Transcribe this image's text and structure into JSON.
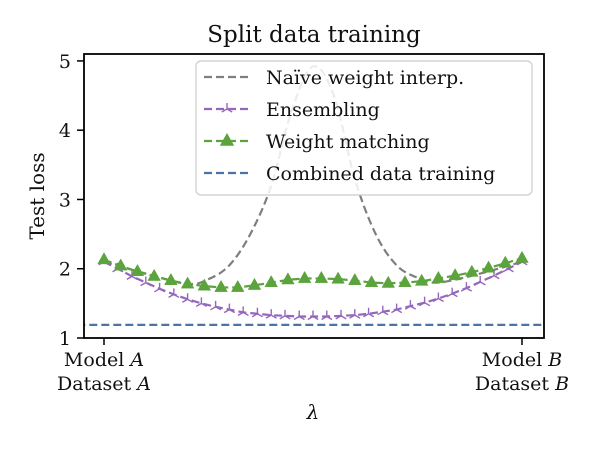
{
  "chart_data": {
    "type": "line",
    "title": "Split data training",
    "xlabel": "λ",
    "ylabel": "Test loss",
    "xlim": [
      0,
      1
    ],
    "ylim": [
      1,
      5.1
    ],
    "yticks": [
      1,
      2,
      3,
      4,
      5
    ],
    "xticks": [
      {
        "x": 0,
        "line1": "Model A",
        "line2": "Dataset A"
      },
      {
        "x": 1,
        "line1": "Model B",
        "line2": "Dataset B"
      }
    ],
    "legend_position": "top-right",
    "series": [
      {
        "name": "Naïve weight interp.",
        "color": "#7f7f7f",
        "style": "dashed",
        "marker": "none",
        "x": [
          0.0,
          0.1,
          0.2,
          0.25,
          0.3,
          0.35,
          0.4,
          0.45,
          0.5,
          0.55,
          0.6,
          0.65,
          0.7,
          0.75,
          0.8,
          0.9,
          1.0
        ],
        "y": [
          2.1,
          1.93,
          1.78,
          1.85,
          2.05,
          2.5,
          3.2,
          4.3,
          4.92,
          4.5,
          3.3,
          2.5,
          2.05,
          1.87,
          1.8,
          1.93,
          2.1
        ]
      },
      {
        "name": "Ensembling",
        "color": "#9467bd",
        "style": "dashed",
        "marker": "tri",
        "x": [
          0.0,
          0.033,
          0.067,
          0.1,
          0.133,
          0.167,
          0.2,
          0.233,
          0.267,
          0.3,
          0.333,
          0.367,
          0.4,
          0.433,
          0.467,
          0.5,
          0.533,
          0.567,
          0.6,
          0.633,
          0.667,
          0.7,
          0.733,
          0.767,
          0.8,
          0.833,
          0.867,
          0.9,
          0.933,
          0.967,
          1.0
        ],
        "y": [
          2.1,
          2.0,
          1.89,
          1.8,
          1.71,
          1.63,
          1.56,
          1.5,
          1.45,
          1.41,
          1.37,
          1.35,
          1.33,
          1.32,
          1.31,
          1.31,
          1.31,
          1.32,
          1.33,
          1.35,
          1.38,
          1.41,
          1.46,
          1.51,
          1.57,
          1.64,
          1.72,
          1.81,
          1.9,
          2.0,
          2.1
        ]
      },
      {
        "name": "Weight matching",
        "color": "#5ba33c",
        "style": "dashed",
        "marker": "triangle",
        "x": [
          0.0,
          0.04,
          0.08,
          0.12,
          0.16,
          0.2,
          0.24,
          0.28,
          0.32,
          0.36,
          0.4,
          0.44,
          0.48,
          0.52,
          0.56,
          0.6,
          0.64,
          0.68,
          0.72,
          0.76,
          0.8,
          0.84,
          0.88,
          0.92,
          0.96,
          1.0
        ],
        "y": [
          2.13,
          2.04,
          1.96,
          1.89,
          1.83,
          1.78,
          1.75,
          1.73,
          1.73,
          1.76,
          1.8,
          1.84,
          1.86,
          1.86,
          1.85,
          1.83,
          1.8,
          1.79,
          1.8,
          1.82,
          1.86,
          1.9,
          1.95,
          2.01,
          2.08,
          2.15
        ]
      },
      {
        "name": "Combined data training",
        "color": "#4a74a8",
        "style": "dashed",
        "marker": "none",
        "x": [
          -0.15,
          1.15
        ],
        "y": [
          1.19,
          1.19
        ]
      }
    ]
  }
}
